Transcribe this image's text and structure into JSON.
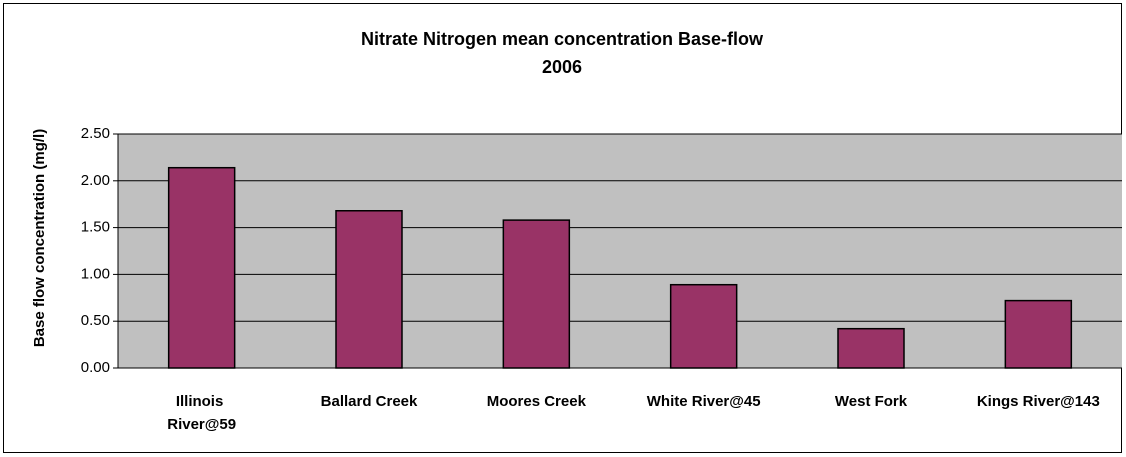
{
  "chart_data": {
    "type": "bar",
    "title": [
      "Nitrate Nitrogen mean concentration Base-flow",
      "2006"
    ],
    "y_label": "Base flow concentration (mg/l)",
    "categories": [
      "Illinois River@59",
      "Ballard Creek",
      "Moores Creek",
      "White River@45",
      "West Fork",
      "Kings River@143"
    ],
    "values": [
      2.14,
      1.68,
      1.58,
      0.89,
      0.42,
      0.72
    ],
    "color": "#993366",
    "ylim": [
      0,
      2.5
    ],
    "yticks": [
      {
        "value": 0,
        "label": "0.00"
      },
      {
        "value": 0.5,
        "label": "0.50"
      },
      {
        "value": 1,
        "label": "1.00"
      },
      {
        "value": 1.5,
        "label": "1.50"
      },
      {
        "value": 2,
        "label": "2.00"
      },
      {
        "value": 2.5,
        "label": "2.50"
      }
    ],
    "grid": true
  }
}
